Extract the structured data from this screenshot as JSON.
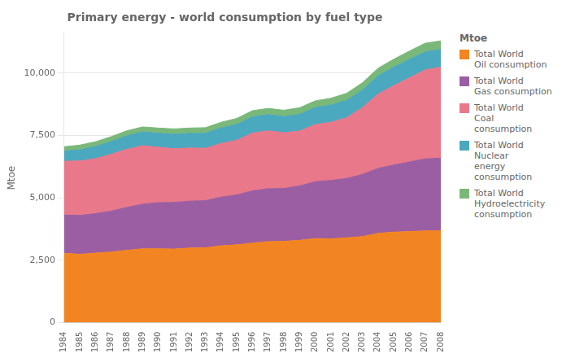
{
  "chart_data": {
    "type": "area",
    "title": "Primary energy - world consumption by fuel type",
    "ylabel": "Mtoe",
    "stacked": true,
    "x": [
      1984,
      1985,
      1986,
      1987,
      1988,
      1989,
      1990,
      1991,
      1992,
      1993,
      1994,
      1995,
      1996,
      1997,
      1998,
      1999,
      2000,
      2001,
      2002,
      2003,
      2004,
      2005,
      2006,
      2007,
      2008
    ],
    "series": [
      {
        "name": "Total World\nOil consumption",
        "color": "#F28522",
        "values": [
          2780,
          2740,
          2790,
          2830,
          2900,
          2960,
          2960,
          2950,
          2990,
          3000,
          3080,
          3120,
          3190,
          3250,
          3260,
          3300,
          3370,
          3360,
          3400,
          3450,
          3580,
          3630,
          3650,
          3680,
          3680
        ]
      },
      {
        "name": "Total World\nGas consumption",
        "color": "#9B5EA2",
        "values": [
          1530,
          1560,
          1580,
          1640,
          1720,
          1790,
          1850,
          1870,
          1880,
          1890,
          1950,
          2000,
          2090,
          2120,
          2120,
          2180,
          2280,
          2340,
          2380,
          2490,
          2600,
          2690,
          2790,
          2880,
          2920
        ]
      },
      {
        "name": "Total World\nCoal\nconsumption",
        "color": "#E8788A",
        "values": [
          2160,
          2180,
          2200,
          2280,
          2330,
          2340,
          2220,
          2150,
          2130,
          2100,
          2150,
          2190,
          2320,
          2320,
          2230,
          2200,
          2290,
          2330,
          2430,
          2680,
          2980,
          3180,
          3370,
          3570,
          3640
        ]
      },
      {
        "name": "Total World\nNuclear\nenergy\nconsumption",
        "color": "#4AA8BF",
        "values": [
          400,
          450,
          490,
          510,
          540,
          550,
          560,
          580,
          580,
          600,
          620,
          640,
          650,
          650,
          650,
          670,
          680,
          690,
          700,
          700,
          730,
          740,
          740,
          720,
          710
        ]
      },
      {
        "name": "Total World\nHydroelectricity\nconsumption",
        "color": "#7AB87A",
        "values": [
          180,
          185,
          190,
          195,
          200,
          205,
          210,
          215,
          220,
          225,
          230,
          235,
          245,
          248,
          255,
          262,
          268,
          275,
          282,
          290,
          305,
          318,
          335,
          348,
          342
        ]
      }
    ],
    "xlim": [
      1984,
      2008
    ],
    "xticks": [
      1984,
      1985,
      1986,
      1987,
      1988,
      1989,
      1990,
      1991,
      1992,
      1993,
      1994,
      1995,
      1996,
      1997,
      1998,
      1999,
      2000,
      2001,
      2002,
      2003,
      2004,
      2005,
      2006,
      2007,
      2008
    ],
    "ylim": [
      0,
      11600
    ],
    "yticks": [
      0,
      {
        "value": 2500,
        "label": "2,500"
      },
      {
        "value": 5000,
        "label": "5,000"
      },
      {
        "value": 7500,
        "label": "7,500"
      },
      {
        "value": 10000,
        "label": "10,000"
      }
    ],
    "grid": "y",
    "legend": "right",
    "legend_title": "Mtoe"
  }
}
